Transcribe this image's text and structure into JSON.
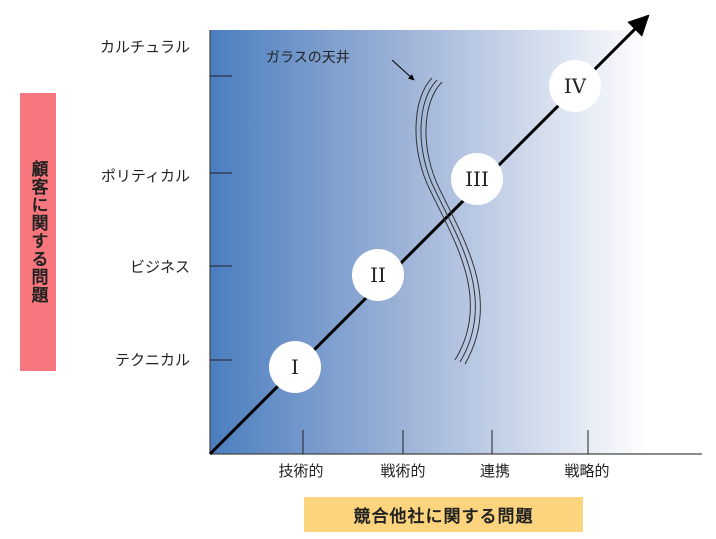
{
  "y_axis": {
    "title": "顧客に関する問題",
    "title_bg": "#f8777f",
    "levels": [
      "テクニカル",
      "ビジネス",
      "ポリティカル",
      "カルチュラル"
    ]
  },
  "x_axis": {
    "title": "競合他社に関する問題",
    "title_bg": "#fdd47e",
    "levels": [
      "技術的",
      "戦術的",
      "連携",
      "戦略的"
    ]
  },
  "glass_ceiling_label": "ガラスの天井",
  "stages": [
    "I",
    "II",
    "III",
    "IV"
  ],
  "colors": {
    "gradient_start": "#4b7ebf",
    "gradient_end": "#ffffff",
    "axis": "#000000"
  }
}
